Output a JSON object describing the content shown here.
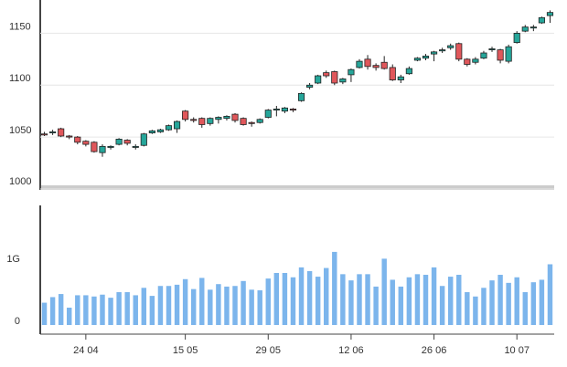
{
  "chart_data": [
    {
      "type": "candlestick",
      "ylim": [
        1000,
        1182
      ],
      "yticks": [
        1000,
        1050,
        1100,
        1150
      ],
      "grid": true,
      "up_color": "#26a69a",
      "down_color": "#e0575b",
      "open": [
        1053,
        1054,
        1058,
        1051,
        1050,
        1046,
        1045,
        1035,
        1040,
        1043,
        1047,
        1040,
        1042,
        1054,
        1055,
        1057,
        1058,
        1075,
        1067,
        1068,
        1063,
        1067,
        1068,
        1072,
        1068,
        1064,
        1064,
        1069,
        1076,
        1075,
        1077,
        1085,
        1098,
        1102,
        1112,
        1113,
        1103,
        1110,
        1117,
        1125,
        1119,
        1122,
        1117,
        1105,
        1111,
        1124,
        1126,
        1130,
        1133,
        1136,
        1140,
        1125,
        1122,
        1126,
        1134,
        1134,
        1123,
        1141,
        1152,
        1155,
        1160,
        1167
      ],
      "high": [
        1055,
        1057,
        1059,
        1052,
        1051,
        1047,
        1046,
        1043,
        1042,
        1049,
        1048,
        1043,
        1054,
        1057,
        1058,
        1062,
        1066,
        1076,
        1069,
        1069,
        1069,
        1070,
        1071,
        1073,
        1069,
        1065,
        1068,
        1077,
        1080,
        1079,
        1078,
        1093,
        1102,
        1110,
        1114,
        1114,
        1107,
        1116,
        1125,
        1129,
        1121,
        1128,
        1120,
        1110,
        1118,
        1127,
        1130,
        1133,
        1136,
        1140,
        1141,
        1126,
        1127,
        1133,
        1137,
        1135,
        1139,
        1152,
        1158,
        1158,
        1166,
        1172
      ],
      "low": [
        1051,
        1052,
        1050,
        1048,
        1043,
        1041,
        1035,
        1031,
        1038,
        1042,
        1042,
        1038,
        1041,
        1053,
        1054,
        1056,
        1054,
        1065,
        1064,
        1059,
        1061,
        1063,
        1066,
        1064,
        1061,
        1060,
        1063,
        1068,
        1070,
        1073,
        1074,
        1084,
        1096,
        1101,
        1107,
        1100,
        1101,
        1103,
        1116,
        1115,
        1114,
        1115,
        1104,
        1102,
        1110,
        1123,
        1124,
        1123,
        1131,
        1134,
        1123,
        1118,
        1120,
        1125,
        1132,
        1121,
        1121,
        1140,
        1151,
        1152,
        1159,
        1160
      ],
      "close": [
        1052,
        1055,
        1051,
        1050,
        1045,
        1043,
        1036,
        1041,
        1041,
        1048,
        1044,
        1041,
        1053,
        1056,
        1057,
        1061,
        1065,
        1067,
        1066,
        1062,
        1068,
        1069,
        1070,
        1066,
        1062,
        1063,
        1067,
        1076,
        1077,
        1078,
        1076,
        1092,
        1100,
        1109,
        1109,
        1102,
        1106,
        1115,
        1123,
        1118,
        1117,
        1116,
        1105,
        1108,
        1116,
        1126,
        1128,
        1132,
        1134,
        1138,
        1125,
        1120,
        1125,
        1131,
        1135,
        1124,
        1137,
        1150,
        1156,
        1156,
        1165,
        1170
      ]
    },
    {
      "type": "bar",
      "color": "#7cb5ec",
      "ylim": [
        0,
        1930000000
      ],
      "yticks": [
        0,
        {
          "value": 1000000000,
          "label": "1G"
        }
      ],
      "categories": [
        null,
        null,
        null,
        null,
        null,
        "24 04",
        null,
        null,
        null,
        null,
        null,
        null,
        null,
        null,
        null,
        null,
        null,
        "15 05",
        null,
        null,
        null,
        null,
        null,
        null,
        null,
        null,
        null,
        "29 05",
        null,
        null,
        null,
        null,
        null,
        null,
        null,
        null,
        null,
        "12 06",
        null,
        null,
        null,
        null,
        null,
        null,
        null,
        null,
        null,
        "26 06",
        null,
        null,
        null,
        null,
        null,
        null,
        null,
        null,
        null,
        "10 07",
        null,
        null,
        null,
        null
      ],
      "values": [
        360000000,
        450000000,
        500000000,
        280000000,
        480000000,
        480000000,
        460000000,
        490000000,
        440000000,
        530000000,
        530000000,
        480000000,
        600000000,
        470000000,
        630000000,
        630000000,
        650000000,
        740000000,
        580000000,
        760000000,
        570000000,
        660000000,
        620000000,
        630000000,
        710000000,
        570000000,
        560000000,
        750000000,
        840000000,
        840000000,
        770000000,
        930000000,
        870000000,
        780000000,
        920000000,
        1180000000,
        820000000,
        720000000,
        820000000,
        820000000,
        620000000,
        1070000000,
        730000000,
        620000000,
        770000000,
        820000000,
        810000000,
        930000000,
        630000000,
        780000000,
        810000000,
        530000000,
        460000000,
        600000000,
        720000000,
        810000000,
        680000000,
        770000000,
        530000000,
        690000000,
        730000000,
        980000000
      ]
    }
  ]
}
